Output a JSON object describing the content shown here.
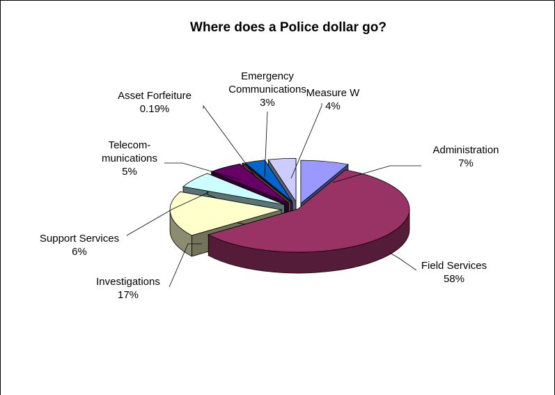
{
  "chart_data": {
    "type": "pie",
    "title": "Where does a Police dollar go?",
    "categories": [
      "Administration",
      "Field Services",
      "Investigations",
      "Support Services",
      "Telecom-munications",
      "Asset Forfeiture",
      "Emergency Communications",
      "Measure W"
    ],
    "values": [
      7,
      58,
      17,
      6,
      5,
      0.19,
      3,
      4
    ],
    "labels": [
      {
        "lines": [
          "Administration",
          "7%"
        ]
      },
      {
        "lines": [
          "Field Services",
          "58%"
        ]
      },
      {
        "lines": [
          "Investigations",
          "17%"
        ]
      },
      {
        "lines": [
          "Support Services",
          "6%"
        ]
      },
      {
        "lines": [
          "Telecom-",
          "munications",
          "5%"
        ]
      },
      {
        "lines": [
          "Asset Forfeiture",
          "0.19%"
        ]
      },
      {
        "lines": [
          "Emergency",
          "Communications",
          "3%"
        ]
      },
      {
        "lines": [
          "Measure W",
          "4%"
        ]
      }
    ],
    "colors": [
      "#9999ff",
      "#993366",
      "#ffffcc",
      "#ccffff",
      "#660066",
      "#ff8080",
      "#0066cc",
      "#ccccff"
    ],
    "style": "3d-exploded-pie"
  }
}
